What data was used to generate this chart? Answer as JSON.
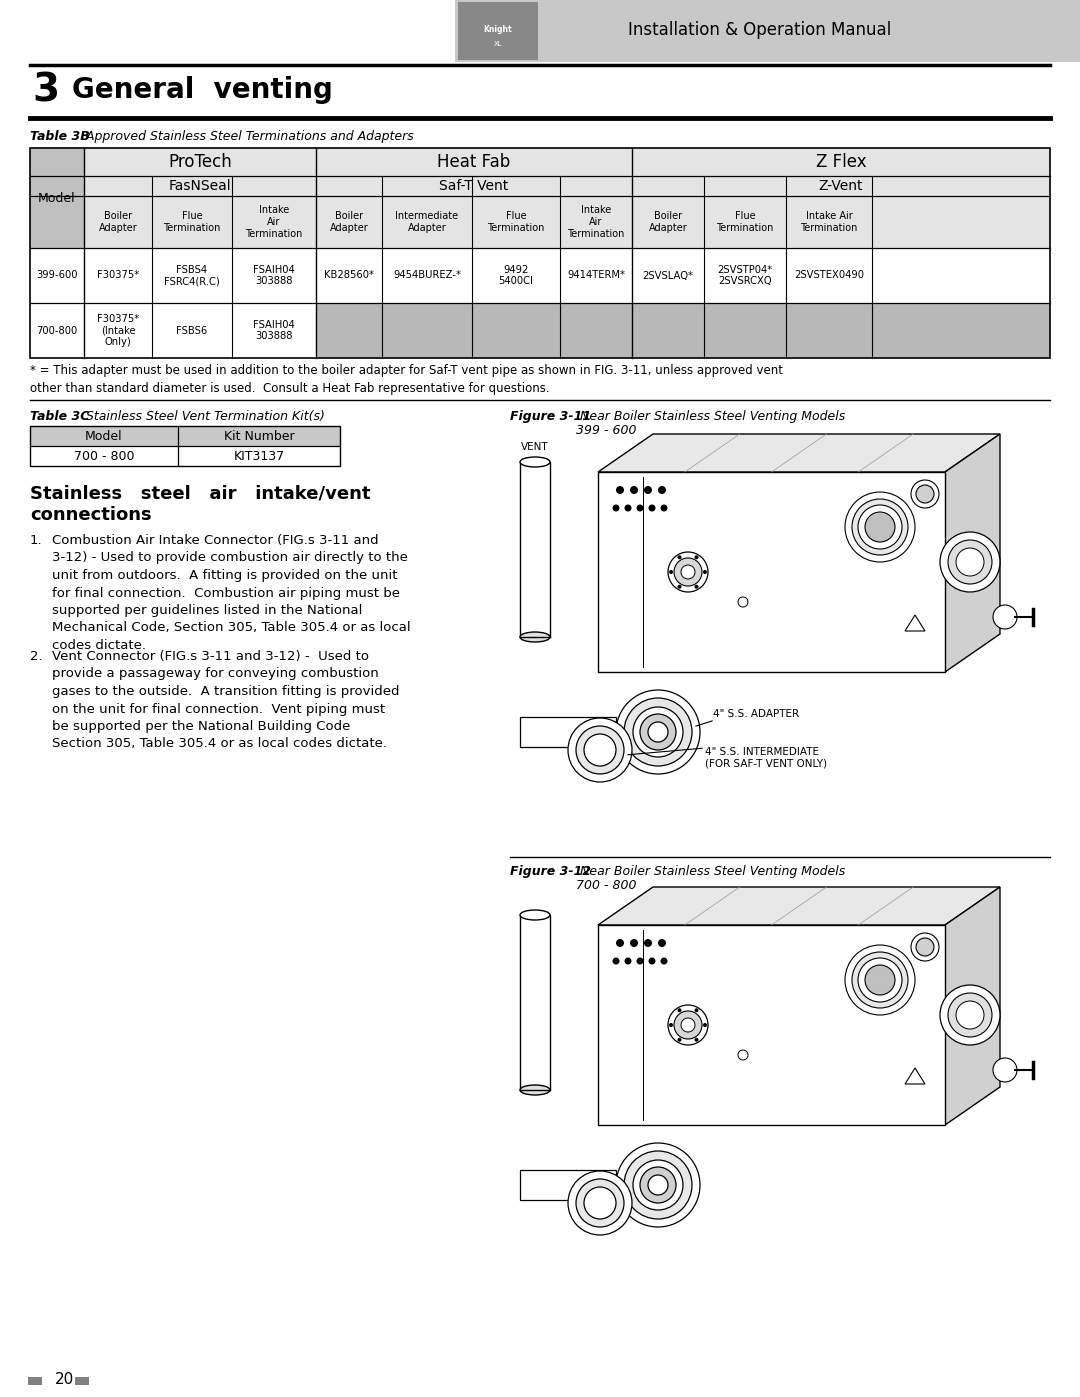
{
  "page_width": 10.8,
  "page_height": 13.97,
  "background_color": "#ffffff",
  "header_text": "Installation & Operation Manual",
  "chapter_num": "3",
  "chapter_title": "General  venting",
  "table3b_caption_bold": "Table 3B",
  "table3b_caption_italic": " Approved Stainless Steel Terminations and Adapters",
  "table3c_caption_bold": "Table 3C",
  "table3c_caption_italic": " Stainless Steel Vent Termination Kit(s)",
  "table3c_headers": [
    "Model",
    "Kit Number"
  ],
  "table3c_data": [
    [
      "700 - 800",
      "KIT3137"
    ]
  ],
  "section_title": "Stainless   steel   air   intake/vent\nconnections",
  "para1_num": "1.",
  "para1_text": "Combustion Air Intake Connector (FIG.s 3-11 and\n3-12) - Used to provide combustion air directly to the\nunit from outdoors.  A fitting is provided on the unit\nfor final connection.  Combustion air piping must be\nsupported per guidelines listed in the National\nMechanical Code, Section 305, Table 305.4 or as local\ncodes dictate.",
  "para2_num": "2.",
  "para2_text": "Vent Connector (FIG.s 3-11 and 3-12) -  Used to\nprovide a passageway for conveying combustion\ngases to the outside.  A transition fitting is provided\non the unit for final connection.  Vent piping must\nbe supported per the National Building Code\nSection 305, Table 305.4 or as local codes dictate.",
  "fig311_caption_bold": "Figure 3-11",
  "fig311_caption_italic": " Near Boiler Stainless Steel Venting Models\n399 - 600",
  "fig312_caption_bold": "Figure 3-12",
  "fig312_caption_italic": " Near Boiler Stainless Steel Venting Models\n700 - 800",
  "footnote": "* = This adapter must be used in addition to the boiler adapter for Saf-T vent pipe as shown in FIG. 3-11, unless approved vent\nother than standard diameter is used.  Consult a Heat Fab representative for questions.",
  "page_num": "20"
}
